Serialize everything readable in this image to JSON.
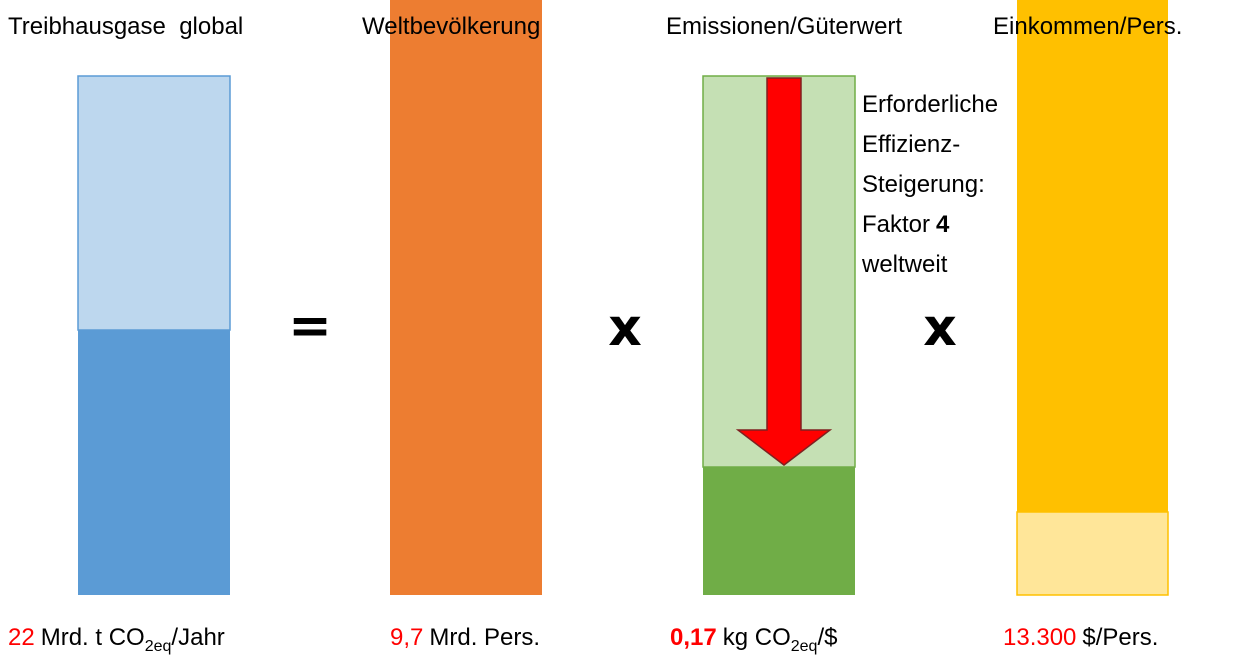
{
  "headers": [
    "Treibhausgase  global",
    "Weltbevölkerung",
    "Emissionen/Güterwert",
    "Einkommen/Pers."
  ],
  "operators": [
    "=",
    "x",
    "x"
  ],
  "annotation": {
    "lines": [
      "Erforderliche",
      "Effizienz-",
      "Steigerung:"
    ],
    "factor_label": "Faktor",
    "factor": "4",
    "last": "weltweit"
  },
  "labels": [
    {
      "value": "22",
      "unit": "Mrd. t CO",
      "subscript": "2eq",
      "suffix": "/Jahr"
    },
    {
      "value": "9,7",
      "unit": "Mrd. Pers."
    },
    {
      "value": "0,17",
      "unit": "kg CO",
      "subscript": "2eq",
      "suffix": "/$"
    },
    {
      "value": "13.300",
      "unit": "$/Pers."
    }
  ]
}
